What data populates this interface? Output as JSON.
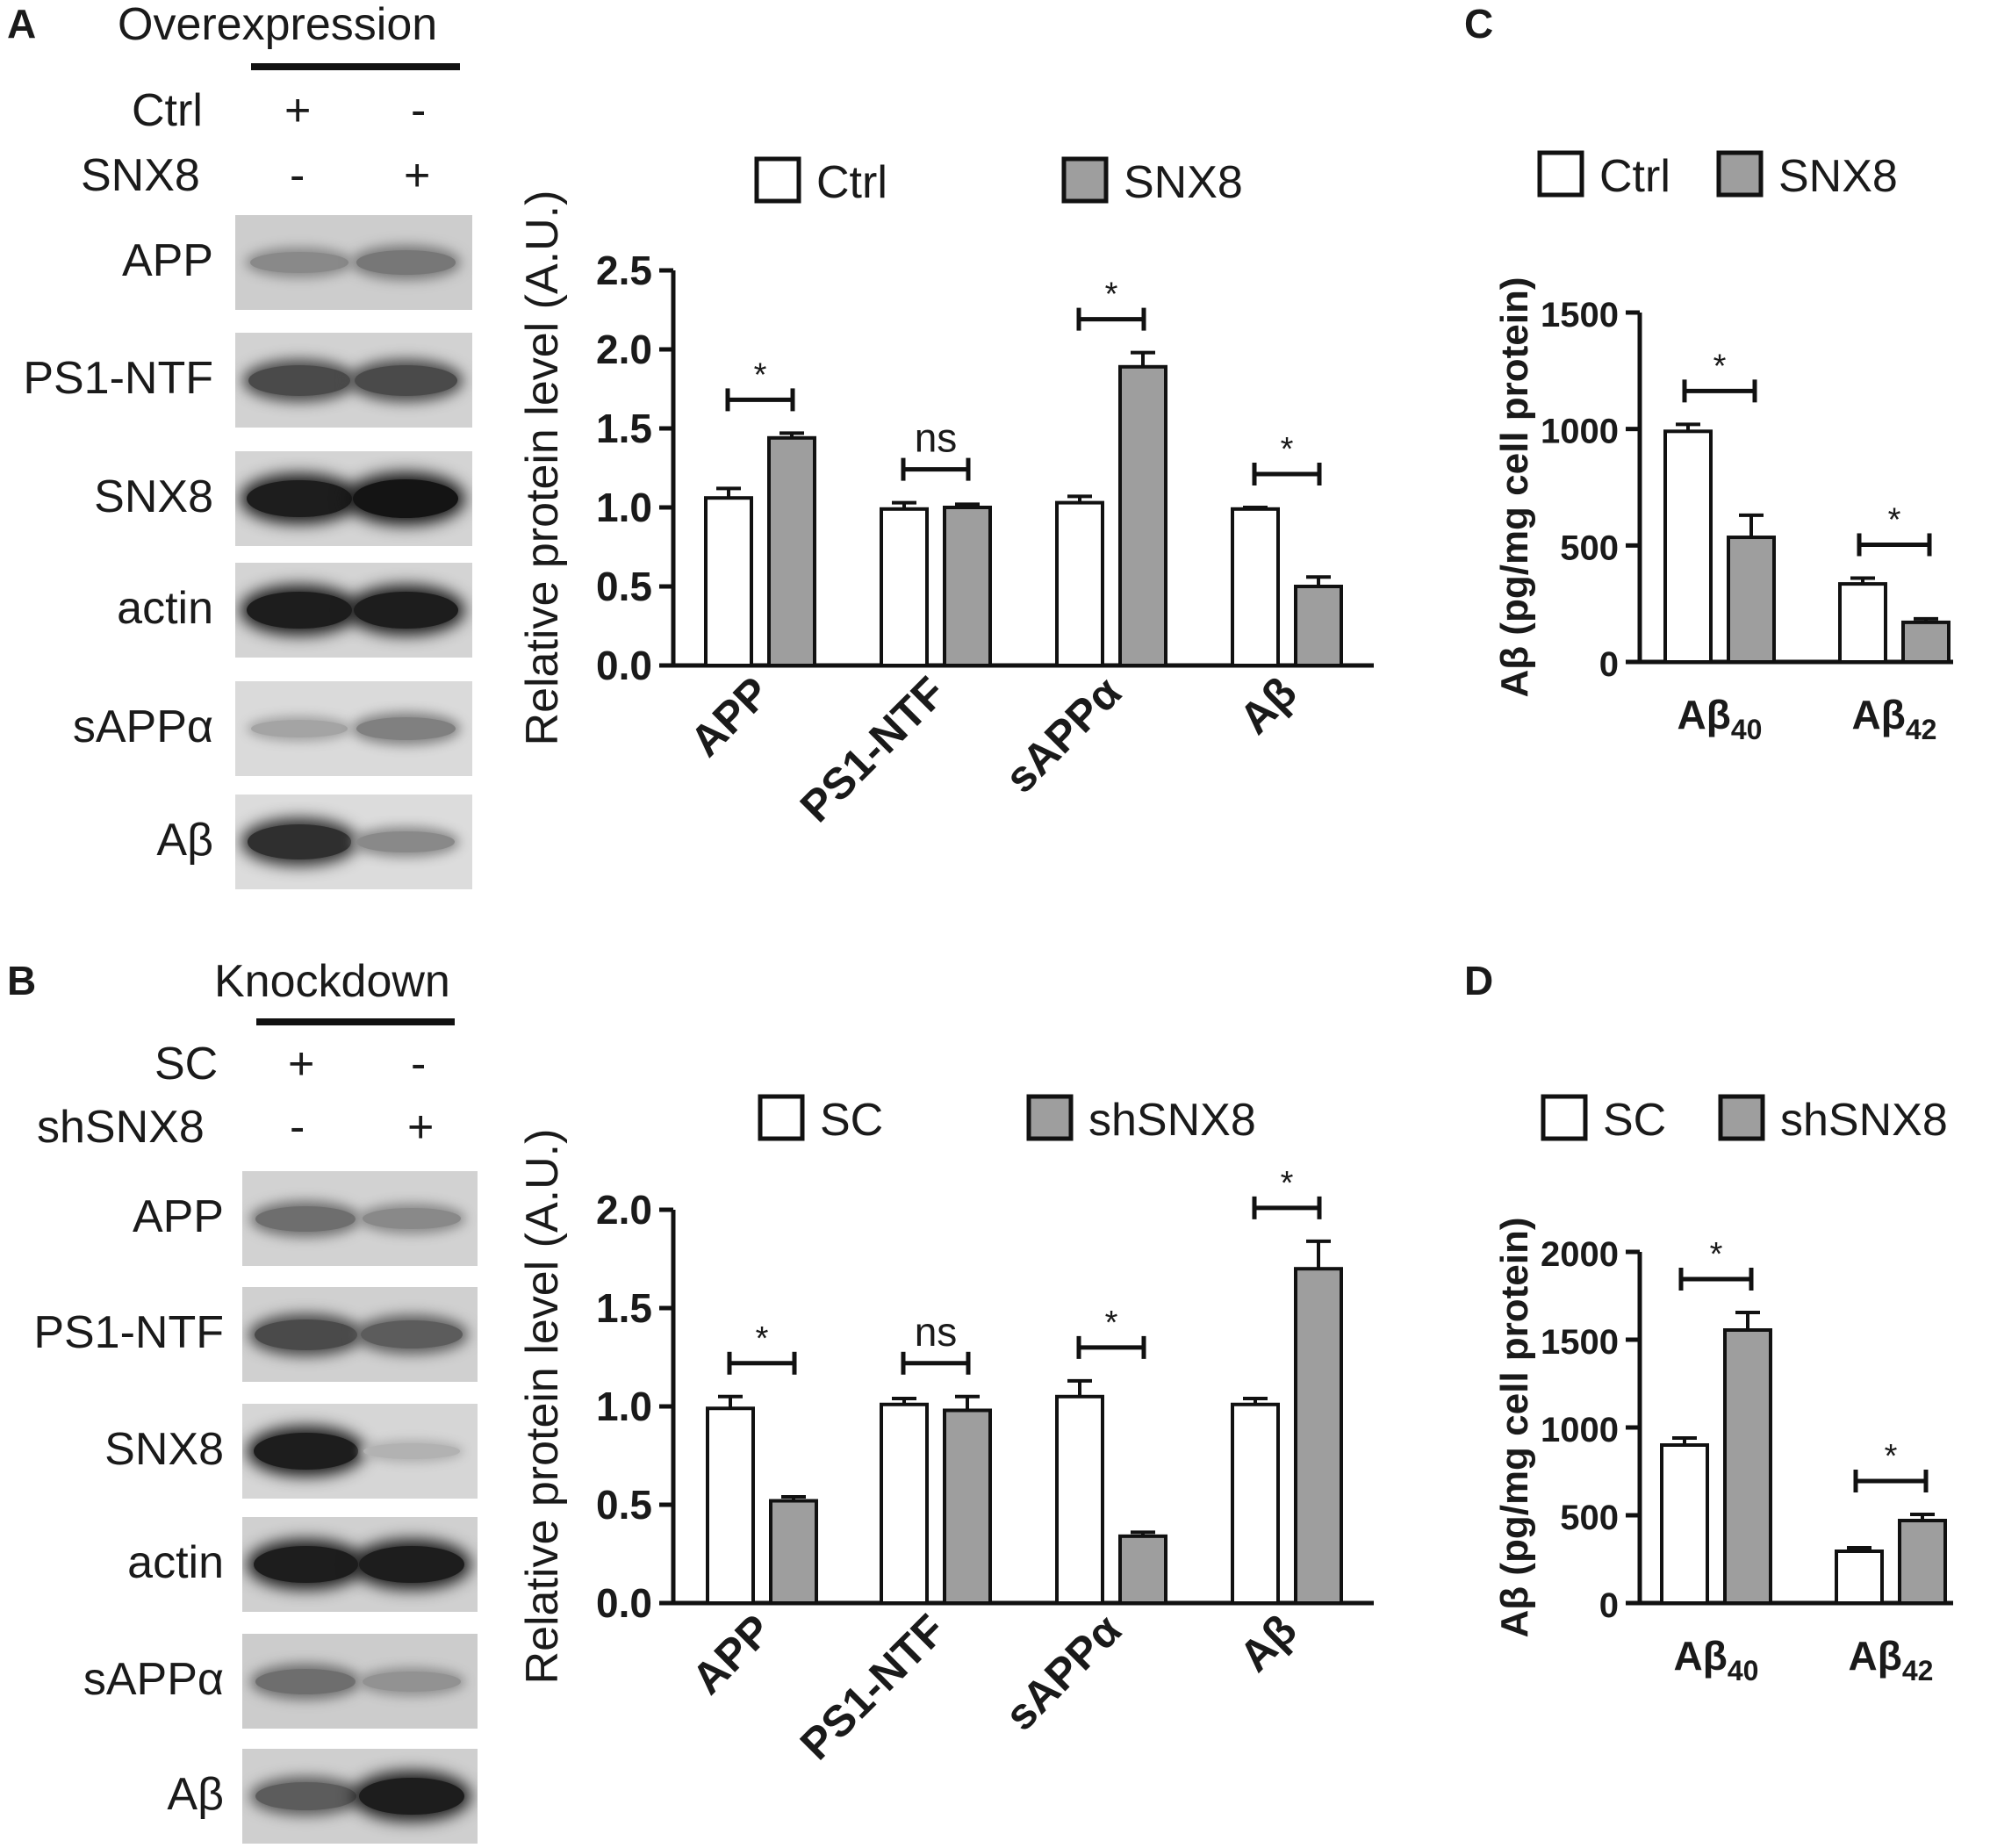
{
  "colors": {
    "ctrl_bar": "#ffffff",
    "treat_bar": "#9e9e9e",
    "blot_bg": "#cfcfcf",
    "band": "#1e1e1e",
    "text": "#1a1a1a"
  },
  "panelA": {
    "letter": "A",
    "condition": "Overexpression",
    "rows": [
      {
        "name": "Ctrl",
        "lane1": "+",
        "lane2": "-"
      },
      {
        "name": "SNX8",
        "lane1": "-",
        "lane2": "+"
      }
    ],
    "blots": [
      {
        "label": "APP",
        "bg": "#cdcdcd",
        "lane1": 0.35,
        "lane2": 0.45
      },
      {
        "label": "PS1-NTF",
        "bg": "#d2d2d2",
        "lane1": 0.7,
        "lane2": 0.7
      },
      {
        "label": "SNX8",
        "bg": "#d4d4d4",
        "lane1": 0.95,
        "lane2": 1.0
      },
      {
        "label": "actin",
        "bg": "#d4d4d4",
        "lane1": 0.95,
        "lane2": 0.95
      },
      {
        "label": "sAPPα",
        "bg": "#dadada",
        "lane1": 0.2,
        "lane2": 0.4
      },
      {
        "label": "Aβ",
        "bg": "#dcdcdc",
        "lane1": 0.85,
        "lane2": 0.35
      }
    ]
  },
  "panelB": {
    "letter": "B",
    "condition": "Knockdown",
    "rows": [
      {
        "name": "SC",
        "lane1": "+",
        "lane2": "-"
      },
      {
        "name": "shSNX8",
        "lane1": "-",
        "lane2": "+"
      }
    ],
    "blots": [
      {
        "label": "APP",
        "bg": "#d2d2d2",
        "lane1": 0.5,
        "lane2": 0.35
      },
      {
        "label": "PS1-NTF",
        "bg": "#d0d0d0",
        "lane1": 0.7,
        "lane2": 0.6
      },
      {
        "label": "SNX8",
        "bg": "#d6d6d6",
        "lane1": 0.95,
        "lane2": 0.12
      },
      {
        "label": "actin",
        "bg": "#d0d0d0",
        "lane1": 0.95,
        "lane2": 0.95
      },
      {
        "label": "sAPPα",
        "bg": "#cccccc",
        "lane1": 0.5,
        "lane2": 0.3
      },
      {
        "label": "Aβ",
        "bg": "#cfcfcf",
        "lane1": 0.6,
        "lane2": 0.95
      }
    ]
  },
  "chart_data": [
    {
      "id": "A-bar",
      "type": "bar",
      "ylabel": "Relative protein level (A.U.)",
      "categories": [
        "APP",
        "PS1-NTF",
        "sAPPα",
        "Aβ"
      ],
      "ylim": [
        0,
        2.5
      ],
      "yticks": [
        "0.0",
        "0.5",
        "1.0",
        "1.5",
        "2.0",
        "2.5"
      ],
      "series": [
        {
          "name": "Ctrl",
          "values": [
            1.06,
            0.99,
            1.03,
            0.99
          ],
          "errors": [
            0.06,
            0.04,
            0.04,
            0.01
          ]
        },
        {
          "name": "SNX8",
          "values": [
            1.44,
            1.0,
            1.89,
            0.5
          ],
          "errors": [
            0.03,
            0.02,
            0.09,
            0.06
          ]
        }
      ],
      "significance": [
        "*",
        "ns",
        "*",
        "*"
      ]
    },
    {
      "id": "B-bar",
      "type": "bar",
      "ylabel": "Relative protein level (A.U.)",
      "categories": [
        "APP",
        "PS1-NTF",
        "sAPPα",
        "Aβ"
      ],
      "ylim": [
        0,
        2.0
      ],
      "yticks": [
        "0.0",
        "0.5",
        "1.0",
        "1.5",
        "2.0"
      ],
      "series": [
        {
          "name": "SC",
          "values": [
            0.99,
            1.01,
            1.05,
            1.01
          ],
          "errors": [
            0.06,
            0.03,
            0.08,
            0.03
          ]
        },
        {
          "name": "shSNX8",
          "values": [
            0.52,
            0.98,
            0.34,
            1.7
          ],
          "errors": [
            0.02,
            0.07,
            0.02,
            0.14
          ]
        }
      ],
      "significance": [
        "*",
        "ns",
        "*",
        "*"
      ]
    },
    {
      "id": "C-bar",
      "type": "bar",
      "letter": "C",
      "ylabel": "Aβ (pg/mg cell protein)",
      "categories": [
        "Aβ40",
        "Aβ42"
      ],
      "ylim": [
        0,
        1500
      ],
      "yticks": [
        "0",
        "500",
        "1000",
        "1500"
      ],
      "series": [
        {
          "name": "Ctrl",
          "values": [
            990,
            335
          ],
          "errors": [
            30,
            25
          ]
        },
        {
          "name": "SNX8",
          "values": [
            535,
            170
          ],
          "errors": [
            95,
            15
          ]
        }
      ],
      "significance": [
        "*",
        "*"
      ]
    },
    {
      "id": "D-bar",
      "type": "bar",
      "letter": "D",
      "ylabel": "Aβ (pg/mg cell protein)",
      "categories": [
        "Aβ40",
        "Aβ42"
      ],
      "ylim": [
        0,
        2000
      ],
      "yticks": [
        "0",
        "500",
        "1000",
        "1500",
        "2000"
      ],
      "series": [
        {
          "name": "SC",
          "values": [
            900,
            295
          ],
          "errors": [
            40,
            20
          ]
        },
        {
          "name": "shSNX8",
          "values": [
            1555,
            470
          ],
          "errors": [
            100,
            35
          ]
        }
      ],
      "significance": [
        "*",
        "*"
      ]
    }
  ]
}
